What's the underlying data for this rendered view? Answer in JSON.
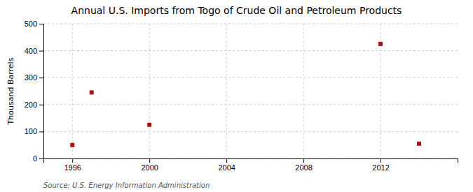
{
  "chart_data": {
    "type": "scatter",
    "title": "Annual U.S. Imports from Togo of Crude Oil and Petroleum Products",
    "ylabel": "Thousand Barrels",
    "source": "Source: U.S. Energy Information Administration",
    "x": [
      1996,
      1997,
      2000,
      2012,
      2014
    ],
    "values": [
      50,
      245,
      125,
      425,
      55
    ],
    "xlim": [
      1994.5,
      2016
    ],
    "ylim": [
      0,
      500
    ],
    "xticks": [
      1996,
      2000,
      2004,
      2008,
      2012
    ],
    "yticks": [
      0,
      100,
      200,
      300,
      400,
      500
    ],
    "color": "#aa1111",
    "marker": "square",
    "grid": true
  }
}
